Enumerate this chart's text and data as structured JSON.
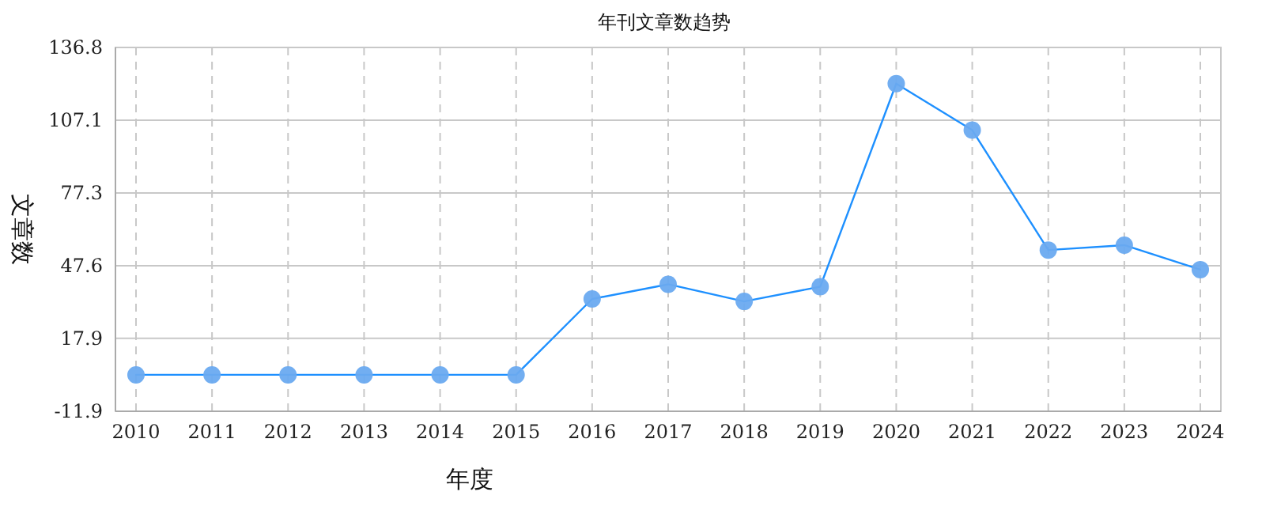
{
  "chart_data": {
    "type": "line",
    "title": "年刊文章数趋势",
    "xlabel": "年度",
    "ylabel": "文章数",
    "categories": [
      "2010",
      "2011",
      "2012",
      "2013",
      "2014",
      "2015",
      "2016",
      "2017",
      "2018",
      "2019",
      "2020",
      "2021",
      "2022",
      "2023",
      "2024"
    ],
    "series": [
      {
        "color": "#1e90ff",
        "values": [
          3,
          3,
          3,
          3,
          3,
          3,
          34,
          40,
          33,
          39,
          122,
          103,
          54,
          56,
          46
        ]
      }
    ],
    "ylim": [
      -11.9,
      136.8
    ],
    "yticks": [
      -11.9,
      17.9,
      47.6,
      77.3,
      107.1,
      136.8
    ],
    "grid": true,
    "marker": "circle",
    "line_style": "solid"
  }
}
